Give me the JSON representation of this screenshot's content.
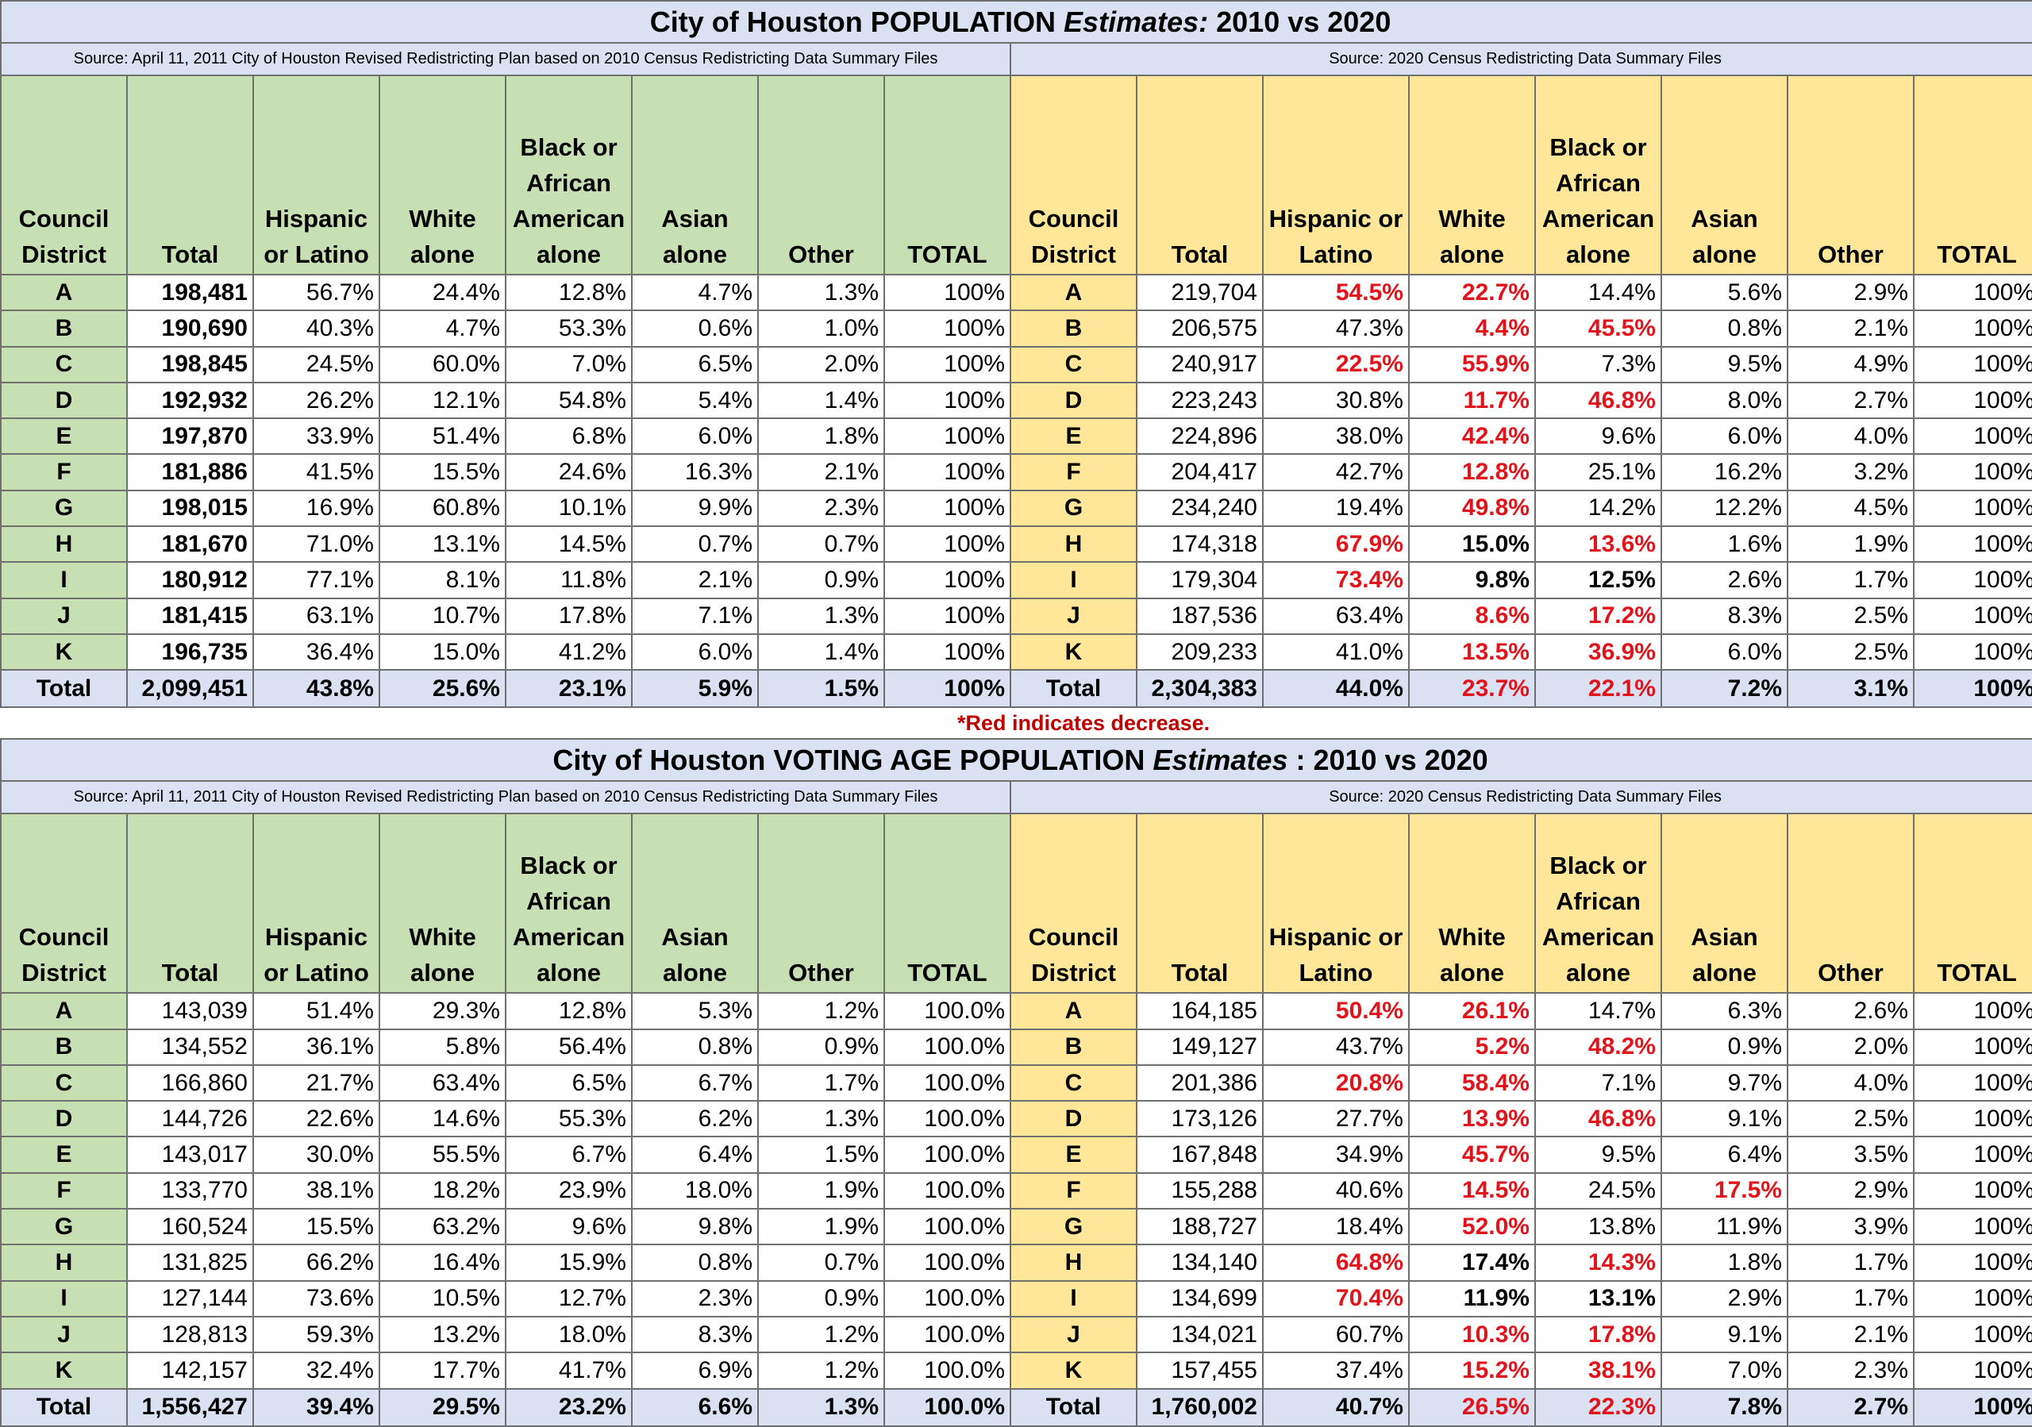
{
  "note": "*Red indicates decrease.",
  "colors": {
    "green": "#c6e0b4",
    "yellow": "#ffe699",
    "blue": "#d9e1f2",
    "red": "#e1141c"
  },
  "headers": [
    "Council District",
    "Total",
    "Hispanic or Latino",
    "White alone",
    "Black or African American alone",
    "Asian alone",
    "Other",
    "TOTAL"
  ],
  "headers_2020": [
    "Council District",
    "Total",
    "Hispanic or Latino",
    "White alone",
    "Black or African American alone",
    "Asian alone",
    "Other",
    "TOTAL"
  ],
  "tables": [
    {
      "title_pre": "City of Houston POPULATION ",
      "title_em": "Estimates:",
      "title_post": "  2010 vs 2020",
      "source_left": "Source: April 11, 2011 City of Houston Revised Redistricting Plan based on 2010 Census Redistricting Data Summary Files",
      "source_right": "Source: 2020 Census Redistricting Data Summary Files",
      "rows": [
        {
          "l": [
            "A",
            "198,481",
            "56.7%",
            "24.4%",
            "12.8%",
            "4.7%",
            "1.3%",
            "100%"
          ],
          "r": [
            "A",
            "219,704",
            "54.5%",
            "22.7%",
            "14.4%",
            "5.6%",
            "2.9%",
            "100%"
          ]
        },
        {
          "l": [
            "B",
            "190,690",
            "40.3%",
            "4.7%",
            "53.3%",
            "0.6%",
            "1.0%",
            "100%"
          ],
          "r": [
            "B",
            "206,575",
            "47.3%",
            "4.4%",
            "45.5%",
            "0.8%",
            "2.1%",
            "100%"
          ]
        },
        {
          "l": [
            "C",
            "198,845",
            "24.5%",
            "60.0%",
            "7.0%",
            "6.5%",
            "2.0%",
            "100%"
          ],
          "r": [
            "C",
            "240,917",
            "22.5%",
            "55.9%",
            "7.3%",
            "9.5%",
            "4.9%",
            "100%"
          ]
        },
        {
          "l": [
            "D",
            "192,932",
            "26.2%",
            "12.1%",
            "54.8%",
            "5.4%",
            "1.4%",
            "100%"
          ],
          "r": [
            "D",
            "223,243",
            "30.8%",
            "11.7%",
            "46.8%",
            "8.0%",
            "2.7%",
            "100%"
          ]
        },
        {
          "l": [
            "E",
            "197,870",
            "33.9%",
            "51.4%",
            "6.8%",
            "6.0%",
            "1.8%",
            "100%"
          ],
          "r": [
            "E",
            "224,896",
            "38.0%",
            "42.4%",
            "9.6%",
            "6.0%",
            "4.0%",
            "100%"
          ]
        },
        {
          "l": [
            "F",
            "181,886",
            "41.5%",
            "15.5%",
            "24.6%",
            "16.3%",
            "2.1%",
            "100%"
          ],
          "r": [
            "F",
            "204,417",
            "42.7%",
            "12.8%",
            "25.1%",
            "16.2%",
            "3.2%",
            "100%"
          ]
        },
        {
          "l": [
            "G",
            "198,015",
            "16.9%",
            "60.8%",
            "10.1%",
            "9.9%",
            "2.3%",
            "100%"
          ],
          "r": [
            "G",
            "234,240",
            "19.4%",
            "49.8%",
            "14.2%",
            "12.2%",
            "4.5%",
            "100%"
          ]
        },
        {
          "l": [
            "H",
            "181,670",
            "71.0%",
            "13.1%",
            "14.5%",
            "0.7%",
            "0.7%",
            "100%"
          ],
          "r": [
            "H",
            "174,318",
            "67.9%",
            "15.0%",
            "13.6%",
            "1.6%",
            "1.9%",
            "100%"
          ]
        },
        {
          "l": [
            "I",
            "180,912",
            "77.1%",
            "8.1%",
            "11.8%",
            "2.1%",
            "0.9%",
            "100%"
          ],
          "r": [
            "I",
            "179,304",
            "73.4%",
            "9.8%",
            "12.5%",
            "2.6%",
            "1.7%",
            "100%"
          ]
        },
        {
          "l": [
            "J",
            "181,415",
            "63.1%",
            "10.7%",
            "17.8%",
            "7.1%",
            "1.3%",
            "100%"
          ],
          "r": [
            "J",
            "187,536",
            "63.4%",
            "8.6%",
            "17.2%",
            "8.3%",
            "2.5%",
            "100%"
          ]
        },
        {
          "l": [
            "K",
            "196,735",
            "36.4%",
            "15.0%",
            "41.2%",
            "6.0%",
            "1.4%",
            "100%"
          ],
          "r": [
            "K",
            "209,233",
            "41.0%",
            "13.5%",
            "36.9%",
            "6.0%",
            "2.5%",
            "100%"
          ]
        }
      ],
      "total": {
        "l": [
          "Total",
          "2,099,451",
          "43.8%",
          "25.6%",
          "23.1%",
          "5.9%",
          "1.5%",
          "100%"
        ],
        "r": [
          "Total",
          "2,304,383",
          "44.0%",
          "23.7%",
          "22.1%",
          "7.2%",
          "3.1%",
          "100%"
        ]
      }
    },
    {
      "title_pre": "City of Houston VOTING AGE POPULATION ",
      "title_em": "Estimates",
      "title_post": " : 2010 vs 2020",
      "source_left": "Source: April 11, 2011 City of Houston Revised Redistricting Plan based on 2010 Census Redistricting Data Summary Files",
      "source_right": "Source: 2020 Census Redistricting Data Summary Files",
      "rows": [
        {
          "l": [
            "A",
            "143,039",
            "51.4%",
            "29.3%",
            "12.8%",
            "5.3%",
            "1.2%",
            "100.0%"
          ],
          "r": [
            "A",
            "164,185",
            "50.4%",
            "26.1%",
            "14.7%",
            "6.3%",
            "2.6%",
            "100%"
          ]
        },
        {
          "l": [
            "B",
            "134,552",
            "36.1%",
            "5.8%",
            "56.4%",
            "0.8%",
            "0.9%",
            "100.0%"
          ],
          "r": [
            "B",
            "149,127",
            "43.7%",
            "5.2%",
            "48.2%",
            "0.9%",
            "2.0%",
            "100%"
          ]
        },
        {
          "l": [
            "C",
            "166,860",
            "21.7%",
            "63.4%",
            "6.5%",
            "6.7%",
            "1.7%",
            "100.0%"
          ],
          "r": [
            "C",
            "201,386",
            "20.8%",
            "58.4%",
            "7.1%",
            "9.7%",
            "4.0%",
            "100%"
          ]
        },
        {
          "l": [
            "D",
            "144,726",
            "22.6%",
            "14.6%",
            "55.3%",
            "6.2%",
            "1.3%",
            "100.0%"
          ],
          "r": [
            "D",
            "173,126",
            "27.7%",
            "13.9%",
            "46.8%",
            "9.1%",
            "2.5%",
            "100%"
          ]
        },
        {
          "l": [
            "E",
            "143,017",
            "30.0%",
            "55.5%",
            "6.7%",
            "6.4%",
            "1.5%",
            "100.0%"
          ],
          "r": [
            "E",
            "167,848",
            "34.9%",
            "45.7%",
            "9.5%",
            "6.4%",
            "3.5%",
            "100%"
          ]
        },
        {
          "l": [
            "F",
            "133,770",
            "38.1%",
            "18.2%",
            "23.9%",
            "18.0%",
            "1.9%",
            "100.0%"
          ],
          "r": [
            "F",
            "155,288",
            "40.6%",
            "14.5%",
            "24.5%",
            "17.5%",
            "2.9%",
            "100%"
          ]
        },
        {
          "l": [
            "G",
            "160,524",
            "15.5%",
            "63.2%",
            "9.6%",
            "9.8%",
            "1.9%",
            "100.0%"
          ],
          "r": [
            "G",
            "188,727",
            "18.4%",
            "52.0%",
            "13.8%",
            "11.9%",
            "3.9%",
            "100%"
          ]
        },
        {
          "l": [
            "H",
            "131,825",
            "66.2%",
            "16.4%",
            "15.9%",
            "0.8%",
            "0.7%",
            "100.0%"
          ],
          "r": [
            "H",
            "134,140",
            "64.8%",
            "17.4%",
            "14.3%",
            "1.8%",
            "1.7%",
            "100%"
          ]
        },
        {
          "l": [
            "I",
            "127,144",
            "73.6%",
            "10.5%",
            "12.7%",
            "2.3%",
            "0.9%",
            "100.0%"
          ],
          "r": [
            "I",
            "134,699",
            "70.4%",
            "11.9%",
            "13.1%",
            "2.9%",
            "1.7%",
            "100%"
          ]
        },
        {
          "l": [
            "J",
            "128,813",
            "59.3%",
            "13.2%",
            "18.0%",
            "8.3%",
            "1.2%",
            "100.0%"
          ],
          "r": [
            "J",
            "134,021",
            "60.7%",
            "10.3%",
            "17.8%",
            "9.1%",
            "2.1%",
            "100%"
          ]
        },
        {
          "l": [
            "K",
            "142,157",
            "32.4%",
            "17.7%",
            "41.7%",
            "6.9%",
            "1.2%",
            "100.0%"
          ],
          "r": [
            "K",
            "157,455",
            "37.4%",
            "15.2%",
            "38.1%",
            "7.0%",
            "2.3%",
            "100%"
          ]
        }
      ],
      "total": {
        "l": [
          "Total",
          "1,556,427",
          "39.4%",
          "29.5%",
          "23.2%",
          "6.6%",
          "1.3%",
          "100.0%"
        ],
        "r": [
          "Total",
          "1,760,002",
          "40.7%",
          "26.5%",
          "22.3%",
          "7.8%",
          "2.7%",
          "100%"
        ]
      }
    }
  ]
}
